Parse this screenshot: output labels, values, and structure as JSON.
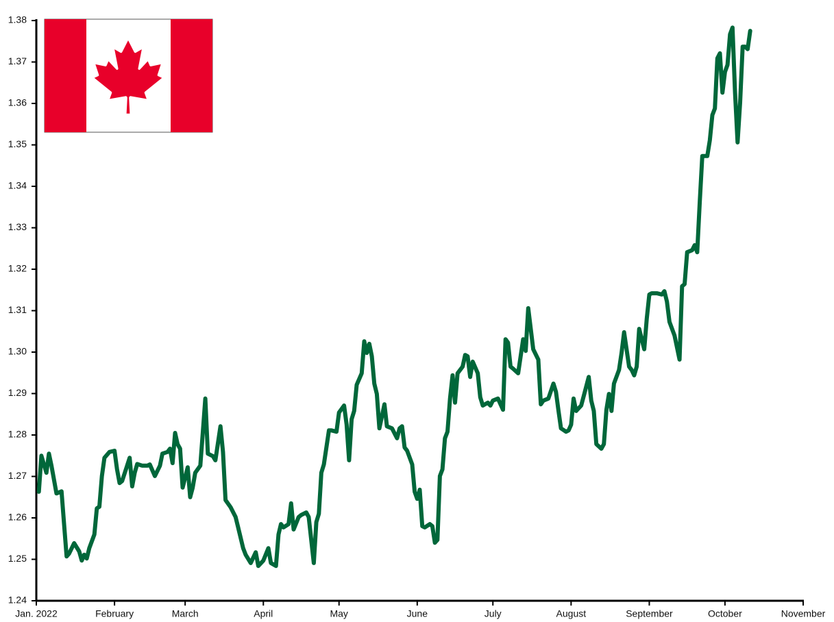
{
  "chart_data": {
    "type": "line",
    "x": [
      1,
      2,
      4,
      5,
      6,
      8,
      10,
      11,
      12,
      13,
      15,
      17,
      18,
      19,
      20,
      21,
      23,
      24,
      25,
      26,
      27,
      29,
      31,
      32,
      33,
      34,
      36,
      37,
      38,
      39,
      40,
      42,
      44,
      45,
      47,
      49,
      50,
      52,
      53,
      54,
      55,
      56,
      57,
      58,
      60,
      61,
      62,
      63,
      65,
      66,
      67,
      68,
      70,
      71,
      73,
      74,
      75,
      77,
      79,
      80,
      82,
      83,
      85,
      87,
      88,
      90,
      92,
      93,
      95,
      96,
      97,
      98,
      100,
      101,
      102,
      104,
      105,
      107,
      108,
      110,
      111,
      112,
      113,
      114,
      116,
      117,
      119,
      120,
      122,
      123,
      124,
      125,
      126,
      127,
      129,
      130,
      131,
      132,
      133,
      134,
      135,
      136,
      138,
      139,
      141,
      143,
      144,
      145,
      146,
      147,
      149,
      150,
      151,
      152,
      153,
      154,
      156,
      157,
      158,
      159,
      160,
      161,
      162,
      163,
      164,
      165,
      166,
      167,
      169,
      170,
      171,
      172,
      173,
      175,
      176,
      177,
      179,
      180,
      181,
      183,
      185,
      186,
      187,
      188,
      189,
      191,
      193,
      194,
      195,
      196,
      197,
      199,
      200,
      201,
      203,
      205,
      206,
      207,
      208,
      210,
      211,
      212,
      213,
      214,
      216,
      217,
      219,
      220,
      221,
      222,
      224,
      225,
      226,
      227,
      228,
      229,
      231,
      232,
      233,
      235,
      236,
      237,
      238,
      239,
      241,
      242,
      243,
      244,
      246,
      248,
      249,
      250,
      251,
      253,
      255,
      256,
      257,
      258,
      260,
      261,
      262,
      263,
      264,
      266,
      267,
      268,
      269,
      270,
      271,
      272,
      273,
      274,
      275,
      276,
      277,
      278,
      279,
      280,
      281,
      282,
      283
    ],
    "values": [
      1.2663,
      1.275,
      1.2709,
      1.2755,
      1.2726,
      1.2659,
      1.2664,
      1.2585,
      1.2507,
      1.2514,
      1.2539,
      1.2519,
      1.2497,
      1.2511,
      1.2502,
      1.2527,
      1.256,
      1.2623,
      1.2627,
      1.2701,
      1.2745,
      1.2759,
      1.2762,
      1.2717,
      1.2684,
      1.2689,
      1.2726,
      1.2745,
      1.2676,
      1.2709,
      1.273,
      1.2726,
      1.2726,
      1.2729,
      1.2701,
      1.2726,
      1.2755,
      1.2759,
      1.2767,
      1.2732,
      1.2805,
      1.2778,
      1.2767,
      1.2673,
      1.2722,
      1.265,
      1.2673,
      1.2709,
      1.2726,
      1.2805,
      1.2888,
      1.2755,
      1.2749,
      1.2739,
      1.2821,
      1.2759,
      1.2643,
      1.2626,
      1.2602,
      1.2577,
      1.2527,
      1.2511,
      1.2491,
      1.2517,
      1.2484,
      1.2497,
      1.2527,
      1.2491,
      1.2484,
      1.256,
      1.2585,
      1.2577,
      1.2585,
      1.2635,
      1.2572,
      1.2602,
      1.2607,
      1.2613,
      1.2602,
      1.2491,
      1.259,
      1.261,
      1.2709,
      1.2729,
      1.2811,
      1.2811,
      1.2808,
      1.2854,
      1.2871,
      1.2825,
      1.2739,
      1.2838,
      1.2858,
      1.2921,
      1.2949,
      1.3026,
      1.2998,
      1.302,
      1.299,
      1.2924,
      1.2899,
      1.2816,
      1.2874,
      1.2821,
      1.2816,
      1.2792,
      1.2816,
      1.2821,
      1.277,
      1.2762,
      1.2729,
      1.2663,
      1.2646,
      1.2668,
      1.258,
      1.2577,
      1.2585,
      1.258,
      1.254,
      1.2547,
      1.2701,
      1.2717,
      1.2792,
      1.2808,
      1.2888,
      1.2944,
      1.2878,
      1.2949,
      1.2965,
      1.2993,
      1.299,
      1.294,
      1.2977,
      1.2949,
      1.2891,
      1.2871,
      1.2878,
      1.2871,
      1.2883,
      1.2888,
      1.2861,
      1.3031,
      1.3023,
      1.2965,
      1.296,
      1.2949,
      1.3031,
      1.3003,
      1.3106,
      1.3056,
      1.3007,
      1.2982,
      1.2874,
      1.2883,
      1.2888,
      1.2924,
      1.2904,
      1.2858,
      1.2816,
      1.2808,
      1.2811,
      1.2825,
      1.2888,
      1.2858,
      1.2871,
      1.2894,
      1.294,
      1.2883,
      1.2858,
      1.2778,
      1.2767,
      1.2778,
      1.2861,
      1.2899,
      1.2858,
      1.2924,
      1.2957,
      1.2998,
      1.3048,
      1.2965,
      1.2957,
      1.2944,
      1.2965,
      1.3056,
      1.3007,
      1.3081,
      1.3139,
      1.3142,
      1.3142,
      1.3139,
      1.3147,
      1.3122,
      1.3073,
      1.304,
      1.2982,
      1.3159,
      1.3164,
      1.3241,
      1.3246,
      1.3258,
      1.3241,
      1.3362,
      1.3473,
      1.3473,
      1.3511,
      1.3572,
      1.3588,
      1.3709,
      1.3721,
      1.3626,
      1.3676,
      1.3693,
      1.3767,
      1.3783,
      1.3626,
      1.3506,
      1.3602,
      1.3737,
      1.3737,
      1.3731,
      1.3775
    ],
    "color": "#00673a",
    "xlim": [
      0,
      304
    ],
    "xticks": [
      {
        "value": 0,
        "label": "Jan. 2022"
      },
      {
        "value": 31,
        "label": "February"
      },
      {
        "value": 59,
        "label": "March"
      },
      {
        "value": 90,
        "label": "April"
      },
      {
        "value": 120,
        "label": "May"
      },
      {
        "value": 151,
        "label": "June"
      },
      {
        "value": 181,
        "label": "July"
      },
      {
        "value": 212,
        "label": "August"
      },
      {
        "value": 243,
        "label": "September"
      },
      {
        "value": 273,
        "label": "October"
      },
      {
        "value": 304,
        "label": "November"
      }
    ],
    "ylim": [
      1.24,
      1.38
    ],
    "yticks": [
      1.24,
      1.25,
      1.26,
      1.27,
      1.28,
      1.29,
      {
        "value": 1.3,
        "label": "1.30"
      },
      1.31,
      1.32,
      1.33,
      1.34,
      1.35,
      1.36,
      1.37,
      1.38
    ]
  }
}
